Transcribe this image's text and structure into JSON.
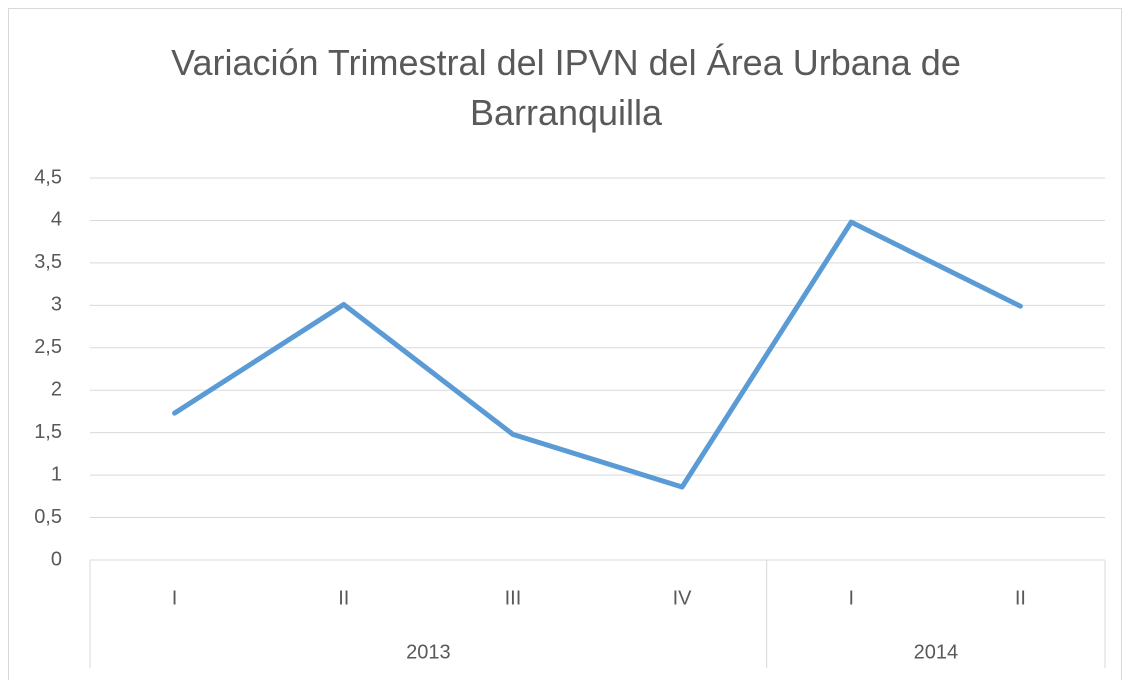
{
  "chart_data": {
    "type": "line",
    "title": "Variación Trimestral del IPVN del Área Urbana de Barranquilla",
    "categories": [
      "I",
      "II",
      "III",
      "IV",
      "I",
      "II"
    ],
    "category_groups": [
      {
        "name": "2013",
        "count": 4
      },
      {
        "name": "2014",
        "count": 2
      }
    ],
    "values": [
      1.73,
      3.01,
      1.48,
      0.86,
      3.98,
      2.99
    ],
    "color": "#5b9bd5",
    "ylim": [
      0,
      4.5
    ],
    "yticks": [
      0,
      {
        "value": 0.5,
        "label": "0,5"
      },
      1,
      {
        "value": 1.5,
        "label": "1,5"
      },
      2,
      {
        "value": 2.5,
        "label": "2,5"
      },
      3,
      {
        "value": 3.5,
        "label": "3,5"
      },
      4,
      {
        "value": 4.5,
        "label": "4,5"
      }
    ],
    "grid": true
  }
}
